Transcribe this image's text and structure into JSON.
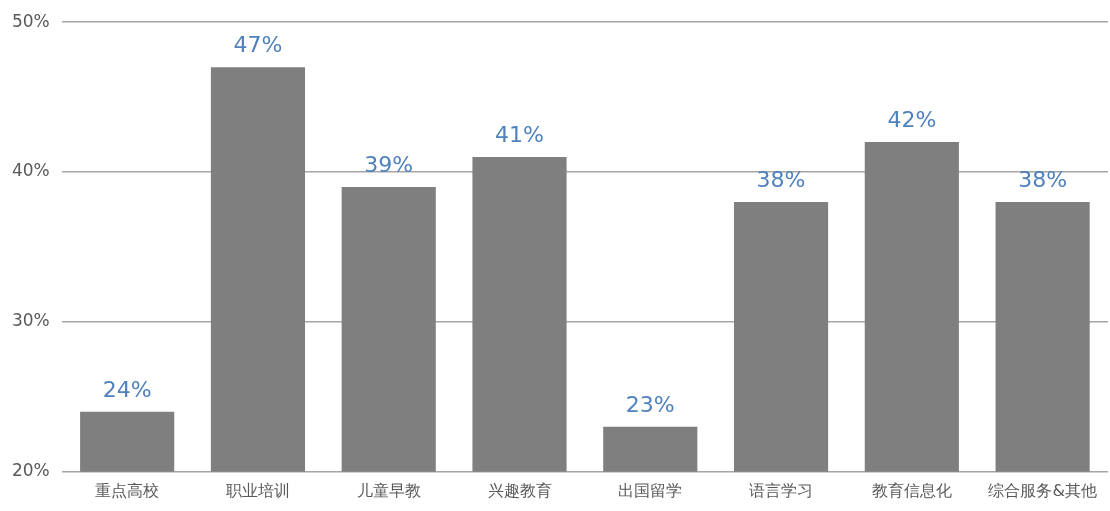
{
  "chart_data": {
    "type": "bar",
    "categories": [
      "重点高校",
      "职业培训",
      "儿童早教",
      "兴趣教育",
      "出国留学",
      "语言学习",
      "教育信息化",
      "综合服务&其他"
    ],
    "values": [
      24,
      47,
      39,
      41,
      23,
      38,
      42,
      38
    ],
    "value_labels": [
      "24%",
      "47%",
      "39%",
      "41%",
      "23%",
      "38%",
      "42%",
      "38%"
    ],
    "color": "#7f7f7f",
    "ylim": [
      20,
      50
    ],
    "yticks": [
      {
        "value": 20,
        "label": "20%"
      },
      {
        "value": 30,
        "label": "30%"
      },
      {
        "value": 40,
        "label": "40%"
      },
      {
        "value": 50,
        "label": "50%"
      }
    ],
    "grid": "y"
  }
}
